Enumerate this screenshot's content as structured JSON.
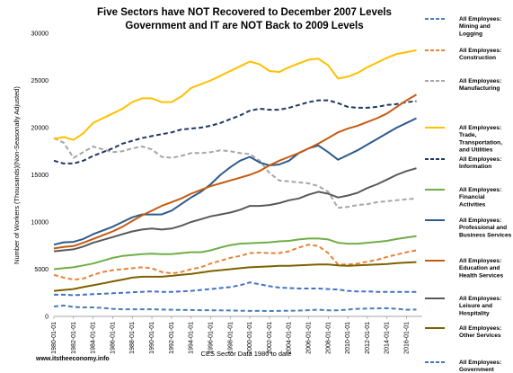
{
  "chart_data": {
    "type": "line",
    "title": "Five Sectors have NOT Recovered to December 2007 Levels",
    "subtitle": "Government and IT are NOT Back to 2009 Levels",
    "xlabel": "CES Sector Data 1980 to date",
    "ylabel": "Number of Workers (Thousands)(Non-Seasonally Adjusted)",
    "source": "www.itstheeconomy.info",
    "ylim": [
      0,
      30000
    ],
    "yticks": [
      0,
      5000,
      10000,
      15000,
      20000,
      25000,
      30000
    ],
    "ytick_labels": [
      "0",
      "5000",
      "10000",
      "15000",
      "20000",
      "25000",
      "30000"
    ],
    "xticks": [
      "1980-01-01",
      "1982-01-01",
      "1984-01-01",
      "1986-01-01",
      "1988-01-01",
      "1990-01-01",
      "1992-01-01",
      "1994-01-01",
      "1996-01-01",
      "1998-01-01",
      "2000-01-01",
      "2002-01-01",
      "2004-01-01",
      "2006-01-01",
      "2008-01-01",
      "2010-01-01",
      "2012-01-01",
      "2014-01-01",
      "2016-01-01"
    ],
    "xlim": [
      1980,
      2017.6
    ],
    "grid": false,
    "legend_position": "right",
    "x": [
      1980,
      1981,
      1982,
      1983,
      1984,
      1985,
      1986,
      1987,
      1988,
      1989,
      1990,
      1991,
      1992,
      1993,
      1994,
      1995,
      1996,
      1997,
      1998,
      1999,
      2000,
      2001,
      2002,
      2003,
      2004,
      2005,
      2006,
      2007,
      2008,
      2009,
      2010,
      2011,
      2012,
      2013,
      2014,
      2015,
      2016,
      2017
    ],
    "series": [
      {
        "name": "All Employees: Mining and Logging",
        "color": "#4a7ebb",
        "dash": "dashed",
        "values": [
          1050,
          1150,
          1000,
          950,
          950,
          900,
          800,
          750,
          750,
          750,
          750,
          720,
          700,
          690,
          680,
          660,
          650,
          640,
          630,
          600,
          580,
          580,
          570,
          580,
          600,
          620,
          660,
          700,
          650,
          650,
          720,
          800,
          830,
          850,
          870,
          800,
          700,
          720
        ]
      },
      {
        "name": "All Employees: Construction",
        "color": "#e8823a",
        "dash": "dashed",
        "values": [
          4400,
          4100,
          3900,
          4000,
          4400,
          4700,
          4900,
          5000,
          5100,
          5200,
          5100,
          4700,
          4550,
          4700,
          5000,
          5200,
          5600,
          5900,
          6200,
          6400,
          6700,
          6750,
          6700,
          6700,
          6900,
          7300,
          7600,
          7450,
          6700,
          5500,
          5500,
          5600,
          5800,
          6000,
          6300,
          6550,
          6800,
          7000
        ]
      },
      {
        "name": "All Employees: Manufacturing",
        "color": "#a6a6a6",
        "dash": "dashed",
        "values": [
          18900,
          18400,
          16800,
          17400,
          18000,
          17700,
          17400,
          17500,
          17800,
          18000,
          17700,
          16900,
          16800,
          17000,
          17300,
          17300,
          17400,
          17600,
          17500,
          17300,
          17200,
          16500,
          15200,
          14400,
          14300,
          14200,
          14100,
          13800,
          13200,
          11500,
          11600,
          11800,
          11900,
          12100,
          12200,
          12300,
          12400,
          12500
        ]
      },
      {
        "name": "All Employees: Trade, Transportation, and Utilities",
        "color": "#ffc000",
        "dash": "solid",
        "values": [
          18800,
          19000,
          18700,
          19400,
          20500,
          21000,
          21500,
          22000,
          22700,
          23100,
          23100,
          22700,
          22700,
          23300,
          24200,
          24600,
          25000,
          25500,
          26000,
          26500,
          27000,
          26700,
          26000,
          25900,
          26400,
          26800,
          27200,
          27300,
          26600,
          25200,
          25400,
          25800,
          26400,
          26900,
          27400,
          27800,
          28000,
          28200
        ]
      },
      {
        "name": "All Employees: Information",
        "color": "#1f3864",
        "dash": "dashed",
        "values": [
          16500,
          16200,
          16200,
          16500,
          17000,
          17400,
          17800,
          18300,
          18600,
          18900,
          19100,
          19300,
          19500,
          19800,
          19900,
          20000,
          20200,
          20500,
          20900,
          21300,
          21800,
          22000,
          21900,
          21900,
          22100,
          22400,
          22700,
          22900,
          22900,
          22600,
          22200,
          22100,
          22100,
          22200,
          22400,
          22500,
          22700,
          22800
        ]
      },
      {
        "name": "All Employees: Financial Activities",
        "color": "#70ad47",
        "dash": "solid",
        "values": [
          5000,
          5100,
          5200,
          5400,
          5600,
          5900,
          6200,
          6400,
          6500,
          6600,
          6650,
          6600,
          6600,
          6700,
          6800,
          6800,
          7000,
          7300,
          7550,
          7700,
          7750,
          7800,
          7850,
          7950,
          8000,
          8150,
          8250,
          8250,
          8150,
          7800,
          7700,
          7700,
          7800,
          7900,
          8000,
          8200,
          8350,
          8500
        ]
      },
      {
        "name": "All Employees: Professional and Business Services",
        "color": "#2e5b8b",
        "dash": "solid",
        "values": [
          7600,
          7850,
          7900,
          8200,
          8700,
          9100,
          9500,
          10000,
          10500,
          10800,
          10800,
          10800,
          11200,
          11900,
          12600,
          13200,
          14000,
          15000,
          15800,
          16500,
          16900,
          16300,
          16000,
          16100,
          16500,
          17300,
          17800,
          18100,
          17400,
          16600,
          17100,
          17600,
          18200,
          18800,
          19400,
          20000,
          20500,
          21000
        ]
      },
      {
        "name": "All Employees: Education and Health Services",
        "color": "#c55a11",
        "dash": "solid",
        "values": [
          7200,
          7350,
          7450,
          7800,
          8200,
          8600,
          9000,
          9500,
          10100,
          10700,
          11200,
          11700,
          12100,
          12500,
          13000,
          13400,
          13800,
          14100,
          14400,
          14700,
          15000,
          15400,
          16000,
          16500,
          16900,
          17300,
          17800,
          18300,
          18900,
          19500,
          19900,
          20200,
          20600,
          21000,
          21500,
          22200,
          22900,
          23500
        ]
      },
      {
        "name": "All Employees: Leisure and Hospitality",
        "color": "#595959",
        "dash": "solid",
        "values": [
          6900,
          7000,
          7100,
          7400,
          7800,
          8100,
          8400,
          8700,
          9000,
          9200,
          9300,
          9200,
          9300,
          9600,
          10000,
          10300,
          10600,
          10800,
          11000,
          11300,
          11700,
          11700,
          11800,
          12000,
          12300,
          12500,
          12900,
          13200,
          13000,
          12600,
          12800,
          13100,
          13600,
          14000,
          14500,
          15000,
          15400,
          15700
        ]
      },
      {
        "name": "All Employees: Other Services",
        "color": "#7f6000",
        "dash": "solid",
        "values": [
          2700,
          2800,
          2900,
          3100,
          3300,
          3500,
          3700,
          3900,
          4100,
          4200,
          4200,
          4200,
          4300,
          4400,
          4500,
          4650,
          4800,
          4900,
          5000,
          5100,
          5200,
          5250,
          5300,
          5350,
          5350,
          5400,
          5450,
          5500,
          5500,
          5400,
          5350,
          5400,
          5450,
          5500,
          5550,
          5650,
          5700,
          5750
        ]
      },
      {
        "name": "All Employees: Government",
        "color": "#4472c4",
        "dash": "dashed",
        "values": [
          2300,
          2300,
          2250,
          2300,
          2350,
          2400,
          2450,
          2500,
          2550,
          2600,
          2650,
          2600,
          2600,
          2650,
          2700,
          2800,
          2900,
          3000,
          3100,
          3300,
          3600,
          3400,
          3200,
          3050,
          3000,
          2950,
          2950,
          2950,
          2900,
          2850,
          2700,
          2650,
          2650,
          2600,
          2600,
          2600,
          2600,
          2600
        ]
      }
    ]
  }
}
